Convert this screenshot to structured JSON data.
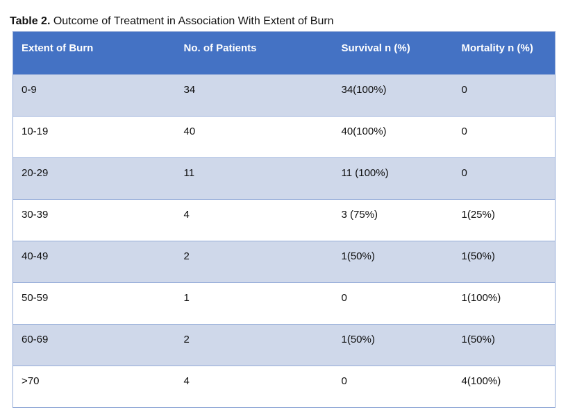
{
  "caption": {
    "label": "Table 2.",
    "text": " Outcome of Treatment in Association With Extent of Burn"
  },
  "table": {
    "columns": [
      "Extent of Burn",
      "No. of Patients",
      "Survival n (%)",
      "Mortality n (%)"
    ],
    "rows": [
      [
        "0-9",
        "34",
        "34(100%)",
        "0"
      ],
      [
        "10-19",
        "40",
        "40(100%)",
        "0"
      ],
      [
        "20-29",
        "11",
        "11 (100%)",
        "0"
      ],
      [
        "30-39",
        "4",
        "3 (75%)",
        "1(25%)"
      ],
      [
        "40-49",
        "2",
        "1(50%)",
        "1(50%)"
      ],
      [
        "50-59",
        "1",
        "0",
        "1(100%)"
      ],
      [
        "60-69",
        "2",
        "1(50%)",
        "1(50%)"
      ],
      [
        ">70",
        "4",
        "0",
        "4(100%)"
      ]
    ]
  },
  "colors": {
    "header_background": "#4472c4",
    "header_text": "#ffffff",
    "banded_row_background": "#cfd8ea",
    "plain_row_background": "#ffffff",
    "border": "#94abd8",
    "body_text": "#0d0d0d"
  }
}
